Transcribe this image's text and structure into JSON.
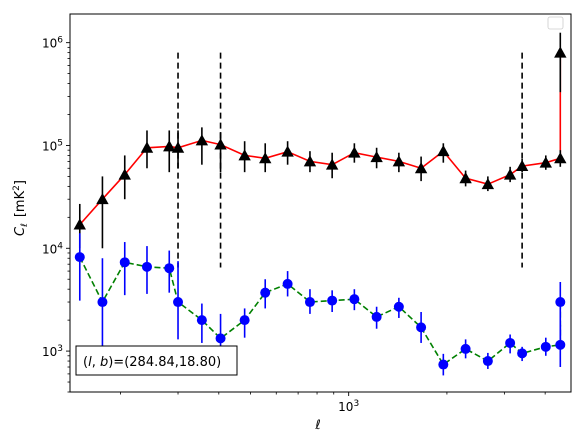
{
  "chart_data": {
    "type": "scatter",
    "xlabel": "ℓ",
    "ylabel_main": "C",
    "ylabel_sub": "ℓ",
    "ylabel_unit": "[mK",
    "ylabel_unit_sup": "2",
    "ylabel_unit_close": "]",
    "x_scale": "log",
    "y_scale": "log",
    "xlim": [
      140,
      4800
    ],
    "ylim": [
      400,
      1900000
    ],
    "x_major_ticks": [
      {
        "value": 1000,
        "base": "10",
        "exp": "3"
      }
    ],
    "y_major_ticks": [
      {
        "value": 1000,
        "base": "10",
        "exp": "3"
      },
      {
        "value": 10000,
        "base": "10",
        "exp": "4"
      },
      {
        "value": 100000,
        "base": "10",
        "exp": "5"
      },
      {
        "value": 1000000,
        "base": "10",
        "exp": "6"
      }
    ],
    "vlines": [
      300,
      405,
      3400
    ],
    "vline_range": [
      6500,
      800000
    ],
    "legend_position": "top-right",
    "annotation": "(l, b)=(284.84,18.80)",
    "annotation_parts": {
      "open": "(",
      "l": "l",
      "sep": ", ",
      "b": "b",
      "close": ")=(284.84,18.80)"
    },
    "series": [
      {
        "marker": "triangle",
        "line_color": "#ff0000",
        "line_style": "solid",
        "marker_color": "#000000",
        "error_color": "#000000",
        "x": [
          150,
          176,
          206,
          241,
          282,
          300,
          355,
          405,
          480,
          555,
          650,
          761,
          890,
          1041,
          1218,
          1425,
          1667,
          1950,
          2282,
          2670,
          3124,
          3400,
          4018,
          4451
        ],
        "y": [
          17000,
          30000,
          52000,
          95000,
          98000,
          95000,
          112000,
          102000,
          80000,
          75000,
          87000,
          70000,
          65000,
          85000,
          77000,
          70000,
          60000,
          88000,
          48000,
          42000,
          52000,
          63000,
          68000,
          75000
        ],
        "y_low": [
          10000,
          10000,
          30000,
          60000,
          55000,
          60000,
          65000,
          55000,
          55000,
          55000,
          65000,
          55000,
          48000,
          68000,
          60000,
          55000,
          45000,
          68000,
          40000,
          36000,
          44000,
          55000,
          58000,
          62000
        ],
        "y_high": [
          27000,
          50000,
          80000,
          140000,
          140000,
          140000,
          150000,
          135000,
          110000,
          105000,
          110000,
          88000,
          85000,
          105000,
          95000,
          85000,
          78000,
          105000,
          57000,
          50000,
          62000,
          74000,
          80000,
          90000
        ],
        "last_x": 4451,
        "last_y": 800000,
        "last_low": 330000,
        "last_high": 1250000
      },
      {
        "marker": "circle",
        "line_color": "#008000",
        "line_style": "dashed",
        "marker_color": "#0000ff",
        "error_color": "#0000ff",
        "x": [
          150,
          176,
          206,
          241,
          282,
          300,
          355,
          405,
          480,
          555,
          650,
          761,
          890,
          1041,
          1218,
          1425,
          1667,
          1950,
          2282,
          2670,
          3124,
          3400,
          4018,
          4451
        ],
        "y": [
          8200,
          3000,
          7300,
          6600,
          6400,
          3000,
          2000,
          1330,
          2000,
          3700,
          4500,
          3000,
          3100,
          3200,
          2150,
          2700,
          1700,
          740,
          1050,
          800,
          1200,
          950,
          1100,
          1150
        ],
        "y_low": [
          3100,
          1000,
          3500,
          3600,
          3700,
          1300,
          1200,
          700,
          1350,
          2600,
          3400,
          2300,
          2400,
          2500,
          1650,
          2100,
          1200,
          580,
          850,
          670,
          950,
          800,
          900,
          700
        ],
        "y_high": [
          14000,
          8000,
          11500,
          10500,
          9500,
          7500,
          2900,
          2300,
          2600,
          5000,
          6000,
          4000,
          3900,
          4000,
          2700,
          3300,
          2400,
          940,
          1300,
          960,
          1450,
          1100,
          1350,
          1800
        ],
        "last_x": 4451,
        "last_y": 3000,
        "last_low": 1200,
        "last_high": 4700
      }
    ]
  }
}
